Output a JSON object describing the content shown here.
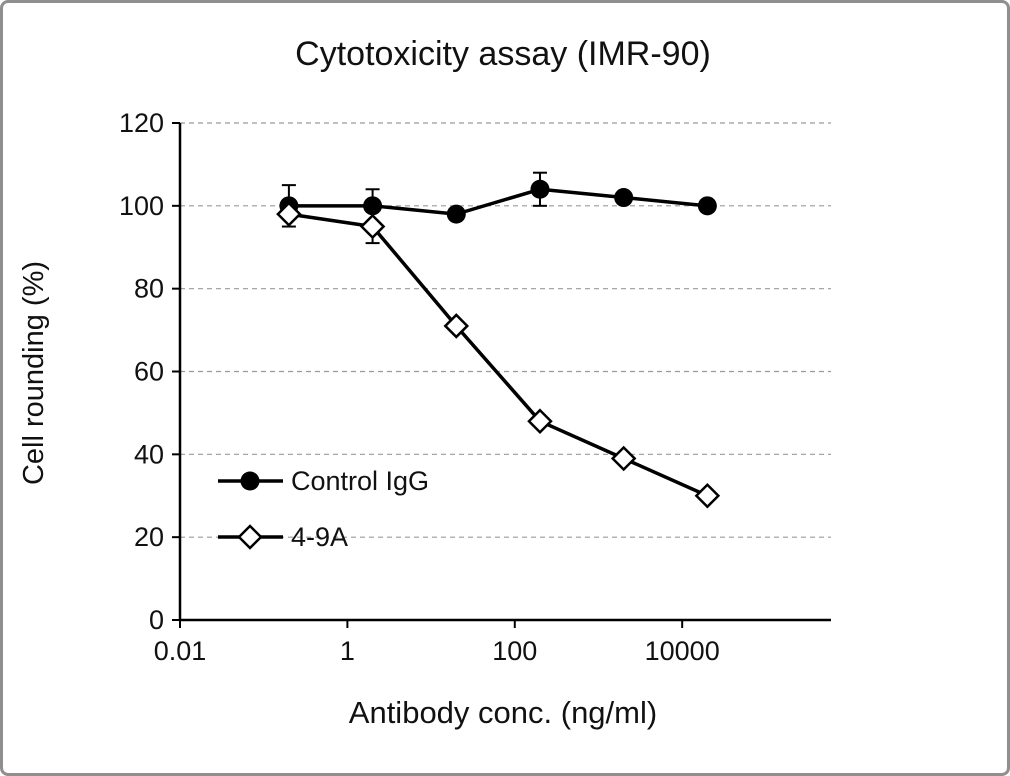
{
  "figure": {
    "border_color": "#8f8f8f",
    "background": "#ffffff",
    "line_color": "#000000",
    "grid_color": "#9a9a9a"
  },
  "chart_data": {
    "type": "line",
    "title": "Cytotoxicity assay (IMR-90)",
    "xlabel": "Antibody conc. (ng/ml)",
    "ylabel": "Cell rounding (%)",
    "x_scale": "log",
    "xlim": [
      0.01,
      600000
    ],
    "ylim": [
      0,
      120
    ],
    "x_ticks": [
      0.01,
      1,
      100,
      10000
    ],
    "x_tick_labels": [
      "0.01",
      "1",
      "100",
      "10000"
    ],
    "y_ticks": [
      0,
      20,
      40,
      60,
      80,
      100,
      120
    ],
    "grid": "horizontal-dashed",
    "legend_position": "inside-lower-left",
    "x": [
      0.2,
      2,
      20,
      200,
      2000,
      20000
    ],
    "series": [
      {
        "name": "Control IgG",
        "marker": "filled-circle",
        "color": "#000000",
        "values": [
          100,
          100,
          98,
          104,
          102,
          100
        ],
        "errors": [
          5,
          4,
          0,
          4,
          0,
          0
        ]
      },
      {
        "name": "4-9A",
        "marker": "open-diamond",
        "color": "#000000",
        "values": [
          98,
          95,
          71,
          48,
          39,
          30
        ],
        "errors": [
          0,
          4,
          0,
          0,
          0,
          0
        ]
      }
    ]
  }
}
